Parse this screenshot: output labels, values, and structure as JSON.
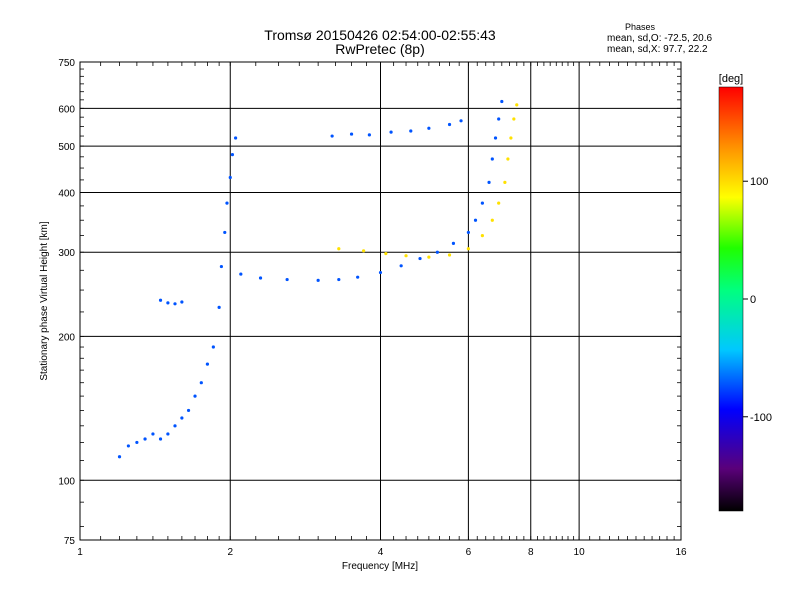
{
  "header": {
    "title": "Tromsø 20150426 02:54:00-02:55:43",
    "subtitle": "RwPretec (8p)"
  },
  "phase_box": {
    "title": "Phases",
    "line_o": "mean, sd,O: -72.5, 20.6",
    "line_x": "mean, sd,X:  97.7, 22.2"
  },
  "colorbar": {
    "unit": "[deg]",
    "tick_labels": [
      "100",
      "0",
      "-100"
    ],
    "ticks": [
      100,
      0,
      -100
    ],
    "range": [
      -180,
      180
    ],
    "colormap": "rainbow"
  },
  "chart_data": {
    "type": "scatter",
    "title": "Tromsø 20150426 02:54:00-02:55:43",
    "subtitle": "RwPretec (8p)",
    "xlabel": "Frequency [MHz]",
    "ylabel": "Stationary phase Virtual Height [km]",
    "xscale": "log",
    "yscale": "log",
    "xlim": [
      1,
      16
    ],
    "ylim": [
      75,
      750
    ],
    "x_ticks": [
      1,
      2,
      4,
      6,
      8,
      10,
      16
    ],
    "x_tick_labels": [
      "1",
      "2",
      "4",
      "6",
      "8",
      "10",
      "16"
    ],
    "y_ticks": [
      75,
      100,
      200,
      300,
      400,
      500,
      600,
      750
    ],
    "y_tick_labels": [
      "75",
      "100",
      "200",
      "300",
      "400",
      "500",
      "600",
      "750"
    ],
    "grid": true,
    "color_by": "phase [deg]",
    "series": [
      {
        "points": [
          [
            1.2,
            112
          ],
          [
            1.25,
            118
          ],
          [
            1.3,
            120
          ],
          [
            1.35,
            122
          ],
          [
            1.4,
            125
          ],
          [
            1.45,
            122
          ],
          [
            1.5,
            125
          ],
          [
            1.55,
            130
          ],
          [
            1.6,
            135
          ],
          [
            1.65,
            140
          ],
          [
            1.7,
            150
          ],
          [
            1.75,
            160
          ],
          [
            1.8,
            175
          ],
          [
            1.85,
            190
          ],
          [
            1.9,
            230
          ],
          [
            1.92,
            280
          ],
          [
            1.95,
            330
          ],
          [
            1.97,
            380
          ],
          [
            2.0,
            430
          ],
          [
            2.02,
            480
          ],
          [
            2.05,
            520
          ],
          [
            1.45,
            238
          ],
          [
            1.5,
            235
          ],
          [
            1.55,
            234
          ],
          [
            1.6,
            236
          ],
          [
            2.1,
            270
          ],
          [
            2.3,
            265
          ],
          [
            2.6,
            263
          ],
          [
            3.0,
            262
          ],
          [
            3.3,
            263
          ],
          [
            3.6,
            266
          ],
          [
            4.0,
            272
          ],
          [
            4.4,
            281
          ],
          [
            4.8,
            291
          ],
          [
            5.2,
            300
          ],
          [
            5.6,
            313
          ],
          [
            6.0,
            330
          ],
          [
            6.2,
            350
          ],
          [
            6.4,
            380
          ],
          [
            6.6,
            420
          ],
          [
            6.7,
            470
          ],
          [
            6.8,
            520
          ],
          [
            6.9,
            570
          ],
          [
            7.0,
            620
          ],
          [
            3.2,
            525
          ],
          [
            3.5,
            530
          ],
          [
            3.8,
            528
          ],
          [
            4.2,
            535
          ],
          [
            4.6,
            538
          ],
          [
            5.0,
            545
          ],
          [
            5.5,
            555
          ],
          [
            5.8,
            565
          ]
        ]
      },
      {
        "points": [
          [
            3.3,
            305
          ],
          [
            3.7,
            302
          ],
          [
            4.1,
            298
          ],
          [
            4.5,
            295
          ],
          [
            5.0,
            293
          ],
          [
            5.5,
            296
          ],
          [
            6.0,
            305
          ],
          [
            6.4,
            325
          ],
          [
            6.7,
            350
          ],
          [
            6.9,
            380
          ],
          [
            7.1,
            420
          ],
          [
            7.2,
            470
          ],
          [
            7.3,
            520
          ],
          [
            7.4,
            570
          ],
          [
            7.5,
            610
          ]
        ]
      }
    ]
  }
}
